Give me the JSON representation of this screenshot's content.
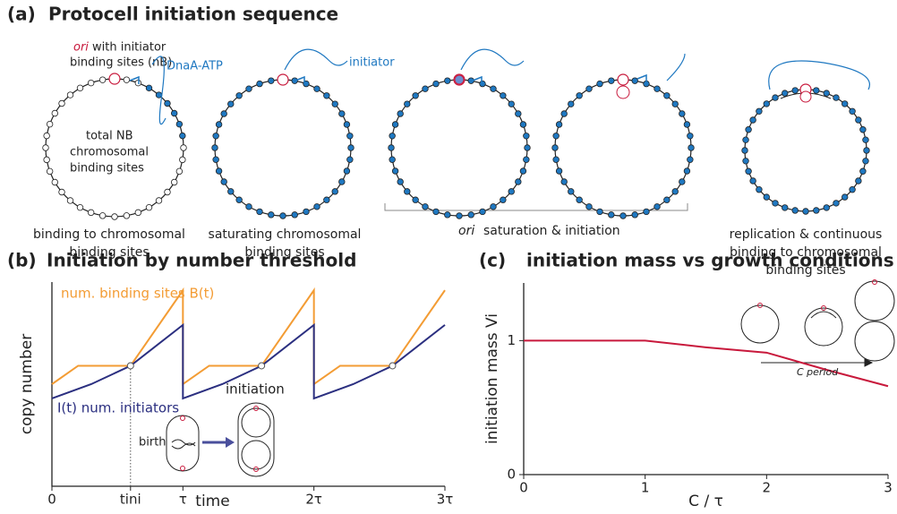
{
  "panel_a": {
    "panel_label": "(a)",
    "title": "Protocell initiation sequence",
    "ori_word": "ori",
    "ori_text": "with initiator",
    "ori_text2": "binding sites (nB)",
    "dnaa": "DnaA-ATP",
    "total1": "total NB",
    "total2": "chromosomal",
    "total3": "binding sites",
    "initiator": "initiator",
    "cap1a": "binding to chromosomal",
    "cap1b": "binding sites",
    "cap2a": "saturating chromosomal",
    "cap2b": "binding sites",
    "cap3_ori": "ori",
    "cap3": "saturation & initiation",
    "cap4a": "replication & continuous",
    "cap4b": "binding to chromosomal",
    "cap4c": "binding sites"
  },
  "chart_data": [
    {
      "type": "line",
      "panel_label": "(b)",
      "title": "Initiation by number threshold",
      "xlabel": "time",
      "ylabel": "copy number",
      "xlim": [
        0,
        3
      ],
      "ylim": [
        0,
        10
      ],
      "xticks": [
        0,
        {
          "value": 0.6,
          "label": "tini"
        },
        {
          "value": 1,
          "label": "τ"
        },
        {
          "value": 2,
          "label": "2τ"
        },
        {
          "value": 3,
          "label": "3τ"
        }
      ],
      "series": [
        {
          "name": "num. binding sites B(t)",
          "color": "#f39c34",
          "x": [
            0,
            0.2,
            0.6,
            1,
            1,
            1.2,
            1.6,
            2,
            2,
            2.2,
            2.6,
            3
          ],
          "values": [
            5.0,
            5.9,
            5.9,
            9.6,
            5.0,
            5.9,
            5.9,
            9.6,
            5.0,
            5.9,
            5.9,
            9.6
          ]
        },
        {
          "name": "I(t) num. initiators",
          "color": "#2b2f80",
          "x": [
            0,
            0.3,
            0.6,
            1,
            1,
            1.3,
            1.6,
            2,
            2,
            2.3,
            2.6,
            3
          ],
          "values": [
            4.3,
            5.0,
            5.9,
            7.9,
            4.3,
            5.0,
            5.9,
            7.9,
            4.3,
            5.0,
            5.9,
            7.9
          ]
        }
      ],
      "annotations": [
        "initiation",
        "birth"
      ]
    },
    {
      "type": "line",
      "panel_label": "(c)",
      "title": "initiation mass vs growth conditions",
      "xlabel": "C / τ",
      "ylabel": "initiation mass Vi",
      "xlim": [
        0,
        3
      ],
      "ylim": [
        0,
        1.43
      ],
      "xticks": [
        0,
        1,
        2,
        3
      ],
      "yticks": [
        0,
        1
      ],
      "color": "#c8193c",
      "x": [
        0,
        1,
        1.5,
        2,
        2.5,
        3
      ],
      "values": [
        1,
        1,
        0.95,
        0.91,
        0.78,
        0.66
      ],
      "annotations": [
        "C period"
      ]
    }
  ]
}
